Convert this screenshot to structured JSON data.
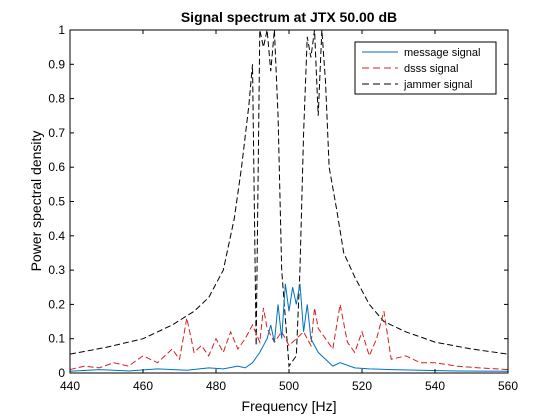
{
  "chart_data": {
    "type": "line",
    "title": "Signal spectrum at JTX 50.00 dB",
    "xlabel": "Frequency [Hz]",
    "ylabel": "Power spectral density",
    "xlim": [
      440,
      560
    ],
    "ylim": [
      0,
      1
    ],
    "xticks": [
      440,
      460,
      480,
      500,
      520,
      540,
      560
    ],
    "yticks": [
      0,
      0.1,
      0.2,
      0.3,
      0.4,
      0.5,
      0.6,
      0.7,
      0.8,
      0.9,
      1
    ],
    "xtick_labels": [
      "440",
      "460",
      "480",
      "500",
      "520",
      "540",
      "560"
    ],
    "ytick_labels": [
      "0",
      "0.1",
      "0.2",
      "0.3",
      "0.4",
      "0.5",
      "0.6",
      "0.7",
      "0.8",
      "0.9",
      "1"
    ],
    "grid": false,
    "legend_position": "top-right",
    "series": [
      {
        "name": "message signal",
        "color": "#0072BD",
        "style": "solid",
        "x": [
          440,
          448,
          456,
          464,
          472,
          478,
          482,
          486,
          488,
          490,
          492,
          494,
          495,
          496,
          497,
          498,
          499,
          500,
          501,
          502,
          503,
          504,
          505,
          506,
          508,
          510,
          512,
          514,
          518,
          522,
          528,
          536,
          546,
          560
        ],
        "values": [
          0.005,
          0.01,
          0.006,
          0.012,
          0.008,
          0.015,
          0.012,
          0.02,
          0.015,
          0.03,
          0.06,
          0.1,
          0.14,
          0.09,
          0.2,
          0.1,
          0.26,
          0.18,
          0.25,
          0.2,
          0.26,
          0.12,
          0.2,
          0.1,
          0.06,
          0.04,
          0.02,
          0.03,
          0.015,
          0.012,
          0.01,
          0.008,
          0.006,
          0.005
        ]
      },
      {
        "name": "dsss signal",
        "color": "#D62020",
        "style": "dashed",
        "x": [
          440,
          444,
          448,
          452,
          456,
          460,
          464,
          468,
          470,
          472,
          474,
          476,
          478,
          480,
          482,
          484,
          486,
          488,
          490,
          492,
          493,
          494,
          496,
          498,
          500,
          502,
          504,
          506,
          507,
          508,
          510,
          512,
          514,
          516,
          518,
          520,
          522,
          524,
          526,
          528,
          532,
          536,
          540,
          546,
          552,
          560
        ],
        "values": [
          0.01,
          0.02,
          0.015,
          0.03,
          0.02,
          0.05,
          0.03,
          0.07,
          0.04,
          0.16,
          0.06,
          0.08,
          0.05,
          0.1,
          0.06,
          0.12,
          0.07,
          0.1,
          0.14,
          0.09,
          0.19,
          0.13,
          0.09,
          0.12,
          0.08,
          0.1,
          0.12,
          0.08,
          0.19,
          0.13,
          0.1,
          0.07,
          0.2,
          0.09,
          0.06,
          0.12,
          0.05,
          0.1,
          0.18,
          0.04,
          0.05,
          0.03,
          0.03,
          0.02,
          0.015,
          0.01
        ]
      },
      {
        "name": "jammer signal",
        "color": "#000000",
        "style": "dashed",
        "x": [
          440,
          450,
          460,
          468,
          474,
          478,
          482,
          485,
          487,
          489,
          490,
          491,
          492,
          493,
          494,
          495,
          496,
          497,
          498,
          500,
          502,
          503,
          504,
          505,
          506,
          507,
          508,
          509,
          510,
          511,
          513,
          515,
          518,
          522,
          526,
          532,
          540,
          550,
          560
        ],
        "values": [
          0.055,
          0.075,
          0.1,
          0.14,
          0.18,
          0.22,
          0.3,
          0.45,
          0.6,
          0.78,
          0.9,
          0.08,
          1.0,
          0.95,
          1.0,
          0.88,
          1.0,
          0.75,
          0.3,
          0.02,
          0.05,
          0.3,
          0.7,
          0.98,
          0.92,
          1.0,
          0.75,
          1.0,
          0.85,
          0.6,
          0.48,
          0.35,
          0.28,
          0.2,
          0.15,
          0.12,
          0.09,
          0.07,
          0.055
        ]
      }
    ]
  }
}
